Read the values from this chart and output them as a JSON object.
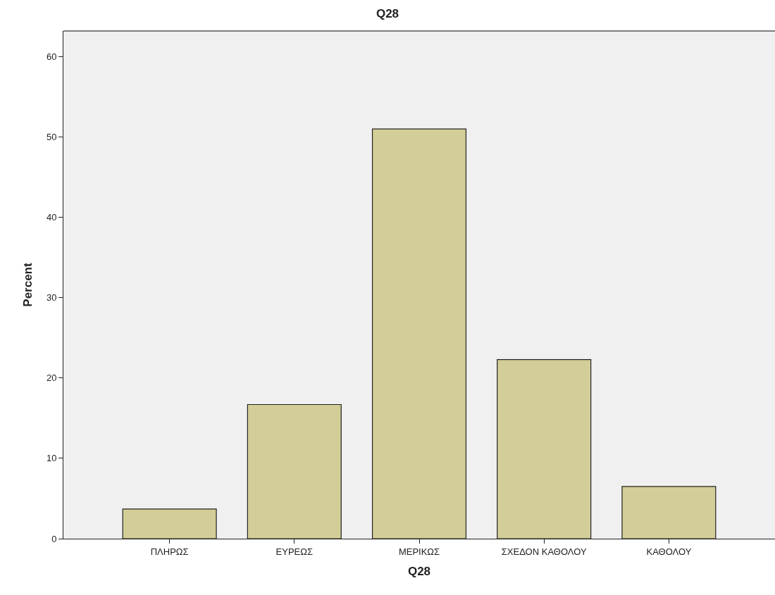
{
  "chart_data": {
    "type": "bar",
    "title": "Q28",
    "xlabel": "Q28",
    "ylabel": "Percent",
    "categories": [
      "ΠΛΗΡΩΣ",
      "ΕΥΡΕΩΣ",
      "ΜΕΡΙΚΩΣ",
      "ΣΧΕΔΟΝ ΚΑΘΟΛΟΥ",
      "ΚΑΘΟΛΟΥ"
    ],
    "values": [
      3.7,
      16.7,
      51.0,
      22.3,
      6.5
    ],
    "color": "#d3ce97",
    "ylim": [
      0,
      63.2
    ],
    "yticks": [
      0,
      10,
      20,
      30,
      40,
      50,
      60
    ],
    "grid": false,
    "legend": false
  }
}
